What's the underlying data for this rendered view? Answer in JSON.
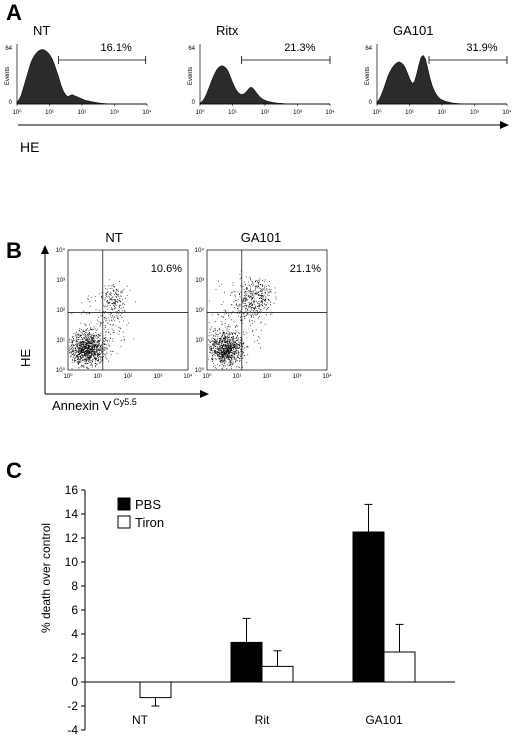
{
  "panels": {
    "A": {
      "letter": "A",
      "axis_label": "HE",
      "histograms": [
        {
          "title": "NT",
          "percent": "16.1%",
          "ylabel": "Events",
          "ymax": "64",
          "ymin": "0",
          "xticks": [
            "10⁰",
            "10¹",
            "10²",
            "10³",
            "10⁴"
          ],
          "profile": [
            2,
            5,
            10,
            18,
            26,
            34,
            42,
            48,
            52,
            55,
            57,
            58,
            58,
            57,
            55,
            52,
            48,
            42,
            35,
            28,
            20,
            14,
            10,
            8,
            9,
            10,
            9,
            8,
            7,
            6,
            5,
            4,
            3.5,
            3,
            2.5,
            2,
            1.6,
            1.2,
            0.9,
            0.6,
            0.4,
            0.3,
            0.2,
            0.1,
            0.1,
            0,
            0,
            0,
            0,
            0,
            0,
            0,
            0,
            0,
            0,
            0,
            0,
            0,
            0,
            0
          ]
        },
        {
          "title": "Ritx",
          "percent": "21.3%",
          "ylabel": "Events",
          "ymax": "64",
          "ymin": "0",
          "xticks": [
            "10⁰",
            "10¹",
            "10²",
            "10³",
            "10⁴"
          ],
          "profile": [
            1,
            3,
            6,
            11,
            17,
            23,
            29,
            34,
            38,
            40,
            41,
            40,
            38,
            34,
            28,
            22,
            17,
            13,
            11,
            10,
            11,
            13,
            16,
            18,
            17,
            14,
            11,
            8,
            6,
            4.5,
            3.5,
            2.8,
            2.2,
            1.7,
            1.3,
            1,
            0.8,
            0.6,
            0.4,
            0.3,
            0.2,
            0.1,
            0.1,
            0,
            0,
            0,
            0,
            0,
            0,
            0,
            0,
            0,
            0,
            0,
            0,
            0,
            0,
            0,
            0,
            0
          ]
        },
        {
          "title": "GA101",
          "percent": "31.9%",
          "ylabel": "Events",
          "ymax": "64",
          "ymin": "0",
          "xticks": [
            "10⁰",
            "10¹",
            "10²",
            "10³",
            "10⁴"
          ],
          "profile": [
            2,
            5,
            10,
            16,
            23,
            30,
            35,
            39,
            42,
            44,
            45,
            44,
            42,
            38,
            32,
            26,
            22,
            24,
            32,
            42,
            50,
            52,
            48,
            38,
            28,
            20,
            14,
            10,
            7,
            5,
            4,
            3,
            2.4,
            1.8,
            1.3,
            0.9,
            0.6,
            0.4,
            0.3,
            0.2,
            0.1,
            0.1,
            0,
            0,
            0,
            0,
            0,
            0,
            0,
            0,
            0,
            0,
            0,
            0,
            0,
            0,
            0,
            0,
            0,
            0
          ]
        }
      ]
    },
    "B": {
      "letter": "B",
      "y_axis_label": "HE",
      "x_axis_label": "Annexin V",
      "x_axis_superscript": "Cy5.5",
      "plots": [
        {
          "title": "NT",
          "percent": "10.6%",
          "xticks": [
            "10⁰",
            "10¹",
            "10²",
            "10³",
            "10⁴"
          ],
          "yticks": [
            "10⁰",
            "10¹",
            "10²",
            "10³",
            "10⁴"
          ]
        },
        {
          "title": "GA101",
          "percent": "21.1%",
          "xticks": [
            "10⁰",
            "10¹",
            "10²",
            "10³",
            "10⁴"
          ],
          "yticks": [
            "10⁰",
            "10¹",
            "10²",
            "10³",
            "10⁴"
          ]
        }
      ]
    },
    "C": {
      "letter": "C",
      "colors": {
        "PBS": "#000000",
        "Tiron": "#ffffff",
        "edge": "#000000"
      }
    }
  },
  "chart_data": {
    "type": "bar",
    "categories": [
      "NT",
      "Rit",
      "GA101"
    ],
    "series": [
      {
        "name": "PBS",
        "values": [
          0,
          3.3,
          12.5
        ],
        "errors": [
          0,
          2.0,
          2.3
        ]
      },
      {
        "name": "Tiron",
        "values": [
          -1.3,
          1.3,
          2.5
        ],
        "errors": [
          0.7,
          1.3,
          2.3
        ]
      }
    ],
    "title": "",
    "xlabel": "",
    "ylabel": "% death over control",
    "ylim": [
      -4,
      16
    ],
    "yticks": [
      "16",
      "14",
      "12",
      "10",
      "8",
      "6",
      "4",
      "2",
      "0",
      "-2",
      "-4"
    ],
    "legend": "top-left",
    "grid": false
  }
}
